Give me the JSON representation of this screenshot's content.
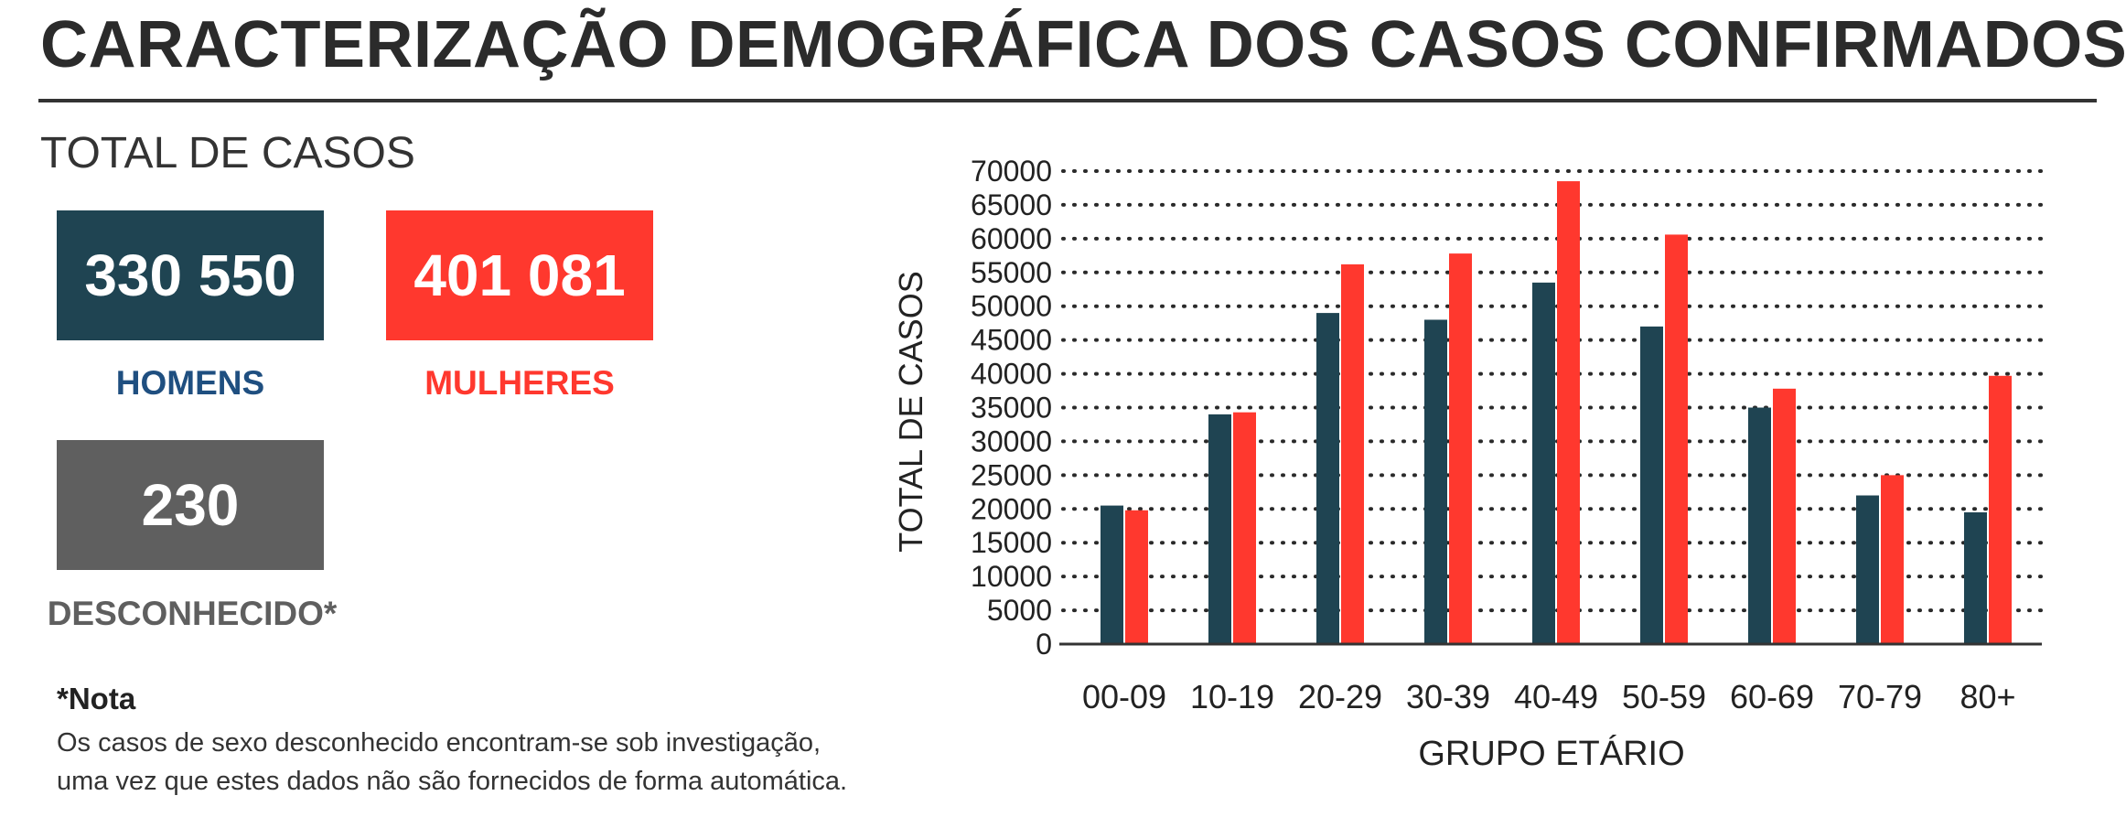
{
  "header": {
    "title": "CARACTERIZAÇÃO DEMOGRÁFICA DOS CASOS CONFIRMADOS"
  },
  "totals": {
    "section_label": "TOTAL DE CASOS",
    "men": {
      "value": "330 550",
      "label": "HOMENS",
      "color": "#1f4452",
      "label_color": "#1f4f80"
    },
    "women": {
      "value": "401 081",
      "label": "MULHERES",
      "color": "#ff382e"
    },
    "unknown": {
      "value": "230",
      "label": "DESCONHECIDO*",
      "color": "#5f5f5f"
    }
  },
  "note": {
    "title": "*Nota",
    "line1": "Os casos de sexo desconhecido encontram-se sob investigação,",
    "line2": "uma vez que estes dados não são fornecidos de forma automática."
  },
  "chart_data": {
    "type": "bar",
    "categories": [
      "00-09",
      "10-19",
      "20-29",
      "30-39",
      "40-49",
      "50-59",
      "60-69",
      "70-79",
      "80+"
    ],
    "series": [
      {
        "color": "#1f4452",
        "values": [
          20500,
          34000,
          49000,
          48000,
          53500,
          47000,
          35000,
          22000,
          19500
        ]
      },
      {
        "color": "#ff382e",
        "values": [
          19800,
          34300,
          56200,
          57800,
          68500,
          60600,
          37800,
          25000,
          39700
        ]
      }
    ],
    "xlabel": "GRUPO ETÁRIO",
    "ylabel": "TOTAL DE CASOS",
    "ylim": [
      0,
      70000
    ],
    "yticks": [
      0,
      5000,
      10000,
      15000,
      20000,
      25000,
      30000,
      35000,
      40000,
      45000,
      50000,
      55000,
      60000,
      65000,
      70000
    ],
    "grid": true,
    "grid_style": "dotted"
  }
}
